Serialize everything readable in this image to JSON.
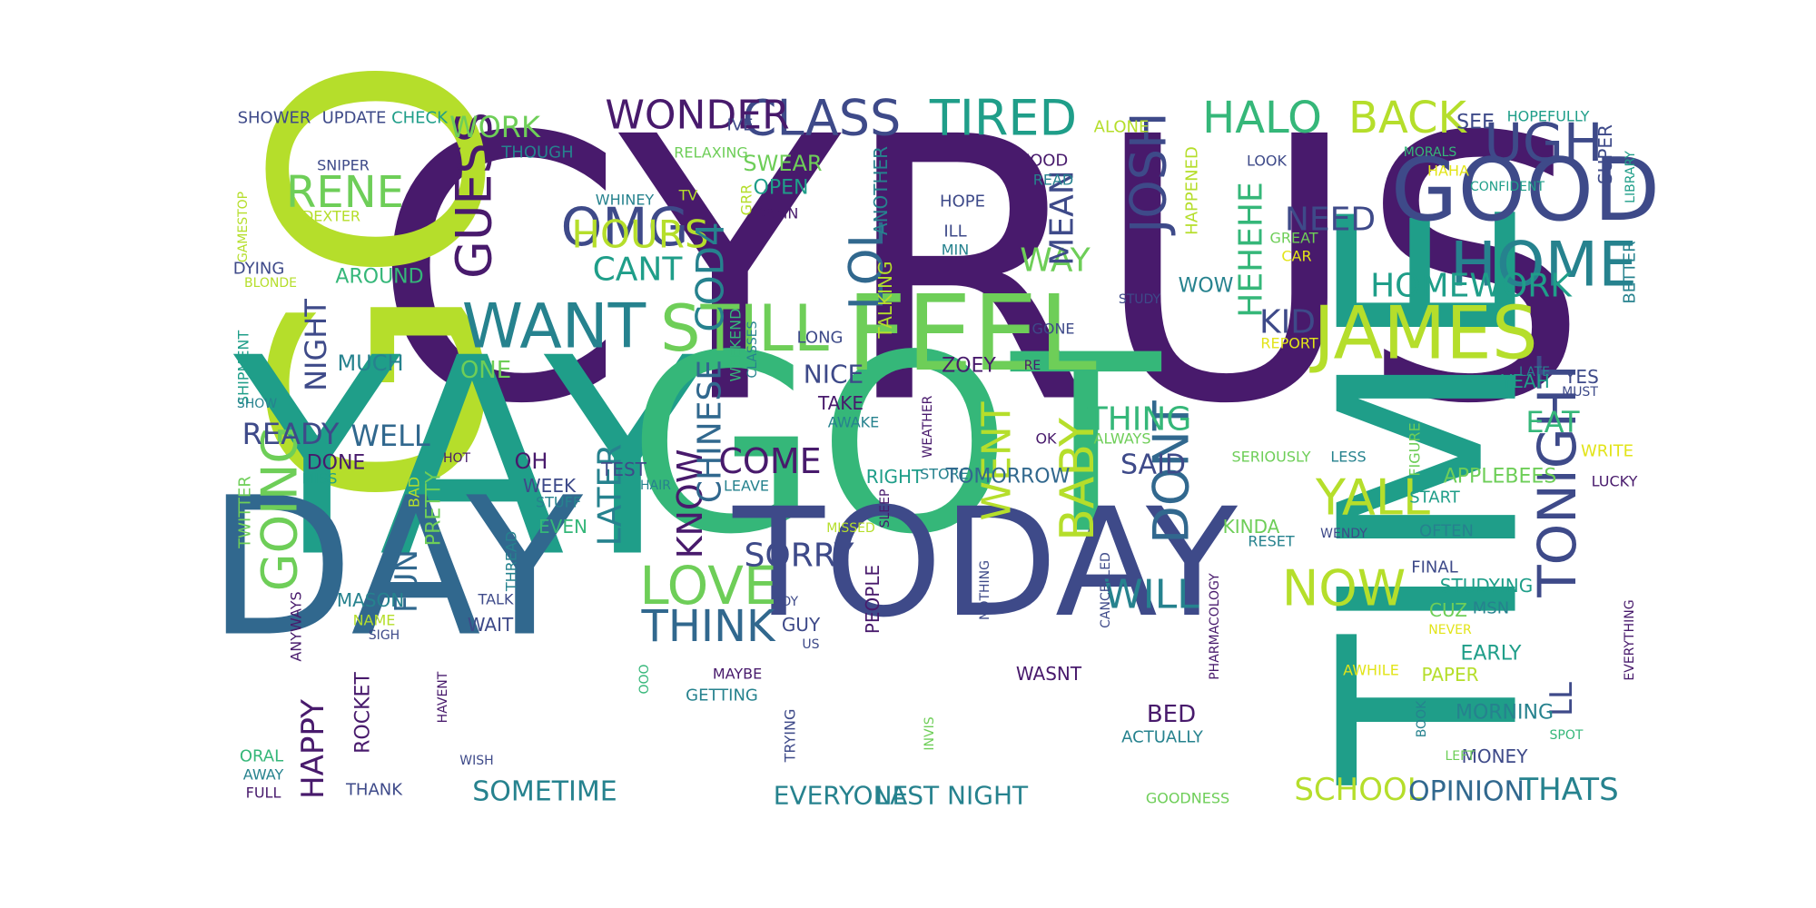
{
  "palette": {
    "purple": "#481a6c",
    "indigo": "#3e4a89",
    "blue": "#31688e",
    "teal": "#26828e",
    "green": "#1f9e89",
    "emerald": "#35b779",
    "lime": "#6ece58",
    "yellowgreen": "#b5de2b",
    "yellow": "#e2e418"
  },
  "words": [
    {
      "t": "CYRUS",
      "c": "purple"
    },
    {
      "t": "GO",
      "c": "yellowgreen"
    },
    {
      "t": "YAY",
      "c": "green"
    },
    {
      "t": "GOT",
      "c": "emerald"
    },
    {
      "t": "TIME",
      "c": "green"
    },
    {
      "t": "DAY",
      "c": "blue"
    },
    {
      "t": "TODAY",
      "c": "indigo"
    },
    {
      "t": "FEEL",
      "c": "lime"
    },
    {
      "t": "GOOD",
      "c": "indigo"
    },
    {
      "t": "JAMES",
      "c": "yellowgreen"
    },
    {
      "t": "STILL",
      "c": "lime"
    },
    {
      "t": "WANT",
      "c": "teal"
    },
    {
      "t": "OMG",
      "c": "indigo"
    },
    {
      "t": "CLASS",
      "c": "indigo"
    },
    {
      "t": "TIRED",
      "c": "green"
    },
    {
      "t": "HALO",
      "c": "emerald"
    },
    {
      "t": "BACK",
      "c": "yellowgreen"
    },
    {
      "t": "WONDER",
      "c": "purple"
    },
    {
      "t": "HOME",
      "c": "teal"
    },
    {
      "t": "UGH",
      "c": "indigo"
    },
    {
      "t": "TONIGHT",
      "c": "indigo"
    },
    {
      "t": "LOVE",
      "c": "lime"
    },
    {
      "t": "THINK",
      "c": "blue"
    },
    {
      "t": "NOW",
      "c": "yellowgreen"
    },
    {
      "t": "YALL",
      "c": "yellowgreen"
    },
    {
      "t": "GOING",
      "c": "lime"
    },
    {
      "t": "GUESS",
      "c": "purple"
    },
    {
      "t": "JOSH",
      "c": "indigo"
    },
    {
      "t": "DONT",
      "c": "blue"
    },
    {
      "t": "BABY",
      "c": "yellowgreen"
    },
    {
      "t": "WILL",
      "c": "teal"
    },
    {
      "t": "RENE",
      "c": "lime"
    },
    {
      "t": "HOURS",
      "c": "yellowgreen"
    },
    {
      "t": "HOMEWORK",
      "c": "green"
    },
    {
      "t": "LOL",
      "c": "blue"
    },
    {
      "t": "CANT",
      "c": "green"
    },
    {
      "t": "COD4",
      "c": "teal"
    },
    {
      "t": "COME",
      "c": "purple"
    },
    {
      "t": "SORRY",
      "c": "indigo"
    },
    {
      "t": "LATER",
      "c": "teal"
    },
    {
      "t": "KNOW",
      "c": "purple"
    },
    {
      "t": "CHINESE",
      "c": "blue"
    },
    {
      "t": "WENT",
      "c": "yellowgreen"
    },
    {
      "t": "THING",
      "c": "emerald"
    },
    {
      "t": "SAID",
      "c": "indigo"
    },
    {
      "t": "WAY",
      "c": "lime"
    },
    {
      "t": "MEAN",
      "c": "indigo"
    },
    {
      "t": "NEED",
      "c": "indigo"
    },
    {
      "t": "KID",
      "c": "indigo"
    },
    {
      "t": "HEHEHE",
      "c": "emerald"
    },
    {
      "t": "READY",
      "c": "indigo"
    },
    {
      "t": "WELL",
      "c": "blue"
    },
    {
      "t": "NIGHT",
      "c": "indigo"
    },
    {
      "t": "WORK",
      "c": "lime"
    },
    {
      "t": "EAT",
      "c": "emerald"
    },
    {
      "t": "YEAH",
      "c": "green"
    },
    {
      "t": "YES",
      "c": "indigo"
    },
    {
      "t": "LL",
      "c": "indigo"
    },
    {
      "t": "SCHOOL",
      "c": "yellowgreen"
    },
    {
      "t": "THATS",
      "c": "teal"
    },
    {
      "t": "OPINION",
      "c": "blue"
    },
    {
      "t": "SOMETIME",
      "c": "teal"
    },
    {
      "t": "LAST NIGHT",
      "c": "teal"
    },
    {
      "t": "EVERYONE",
      "c": "teal"
    },
    {
      "t": "HAPPY",
      "c": "purple"
    },
    {
      "t": "FUN",
      "c": "blue"
    },
    {
      "t": "NICE",
      "c": "indigo"
    },
    {
      "t": "ONE",
      "c": "lime"
    },
    {
      "t": "MUCH",
      "c": "teal"
    },
    {
      "t": "AROUND",
      "c": "emerald"
    },
    {
      "t": "SHOWER",
      "c": "indigo"
    },
    {
      "t": "UPDATE",
      "c": "indigo"
    },
    {
      "t": "CHECK",
      "c": "green"
    },
    {
      "t": "THOUGH",
      "c": "teal"
    },
    {
      "t": "IVE",
      "c": "indigo"
    },
    {
      "t": "RELAXING",
      "c": "lime"
    },
    {
      "t": "SWEAR",
      "c": "lime"
    },
    {
      "t": "OPEN",
      "c": "green"
    },
    {
      "t": "WHINEY",
      "c": "teal"
    },
    {
      "t": "TV",
      "c": "yellowgreen"
    },
    {
      "t": "DAMN",
      "c": "purple"
    },
    {
      "t": "GRR",
      "c": "yellowgreen"
    },
    {
      "t": "ANOTHER",
      "c": "teal"
    },
    {
      "t": "HOPE",
      "c": "indigo"
    },
    {
      "t": "ILL",
      "c": "indigo"
    },
    {
      "t": "MIN",
      "c": "teal"
    },
    {
      "t": "TALKING",
      "c": "yellowgreen"
    },
    {
      "t": "FOOD",
      "c": "purple"
    },
    {
      "t": "READ",
      "c": "teal"
    },
    {
      "t": "ALONE",
      "c": "yellowgreen"
    },
    {
      "t": "HAPPENED",
      "c": "yellowgreen"
    },
    {
      "t": "STUDY",
      "c": "indigo"
    },
    {
      "t": "GONE",
      "c": "indigo"
    },
    {
      "t": "WOW",
      "c": "teal"
    },
    {
      "t": "GREAT",
      "c": "lime"
    },
    {
      "t": "CAR",
      "c": "yellow"
    },
    {
      "t": "REPORT",
      "c": "yellow"
    },
    {
      "t": "LOOK",
      "c": "indigo"
    },
    {
      "t": "SEE",
      "c": "indigo"
    },
    {
      "t": "HOPEFULLY",
      "c": "green"
    },
    {
      "t": "MORALS",
      "c": "emerald"
    },
    {
      "t": "HAHA",
      "c": "yellow"
    },
    {
      "t": "CONFIDENT",
      "c": "green"
    },
    {
      "t": "SUPER",
      "c": "indigo"
    },
    {
      "t": "LIBRARY",
      "c": "green"
    },
    {
      "t": "BETTER",
      "c": "teal"
    },
    {
      "t": "MUST",
      "c": "indigo"
    },
    {
      "t": "LATE",
      "c": "teal"
    },
    {
      "t": "SNIPER",
      "c": "indigo"
    },
    {
      "t": "DEXTER",
      "c": "yellowgreen"
    },
    {
      "t": "GAMESTOP",
      "c": "yellowgreen"
    },
    {
      "t": "DYING",
      "c": "indigo"
    },
    {
      "t": "BLONDE",
      "c": "yellowgreen"
    },
    {
      "t": "SHIPMENT",
      "c": "green"
    },
    {
      "t": "SHOW",
      "c": "teal"
    },
    {
      "t": "TWITTER",
      "c": "lime"
    },
    {
      "t": "DONE",
      "c": "purple"
    },
    {
      "t": "MISS",
      "c": "green"
    },
    {
      "t": "HOT",
      "c": "purple"
    },
    {
      "t": "BAD",
      "c": "yellowgreen"
    },
    {
      "t": "PRETTY",
      "c": "lime"
    },
    {
      "t": "OH",
      "c": "purple"
    },
    {
      "t": "TEST",
      "c": "indigo"
    },
    {
      "t": "WEEK",
      "c": "indigo"
    },
    {
      "t": "HAIR",
      "c": "teal"
    },
    {
      "t": "LEAVE",
      "c": "teal"
    },
    {
      "t": "STUFF",
      "c": "teal"
    },
    {
      "t": "EVEN",
      "c": "emerald"
    },
    {
      "t": "RIGHT",
      "c": "green"
    },
    {
      "t": "STORE",
      "c": "teal"
    },
    {
      "t": "TOMORROW",
      "c": "blue"
    },
    {
      "t": "WEATHER",
      "c": "purple"
    },
    {
      "t": "SLEEP",
      "c": "purple"
    },
    {
      "t": "OK",
      "c": "purple"
    },
    {
      "t": "ALWAYS",
      "c": "lime"
    },
    {
      "t": "SERIOUSLY",
      "c": "lime"
    },
    {
      "t": "LESS",
      "c": "teal"
    },
    {
      "t": "APPLEBEES",
      "c": "lime"
    },
    {
      "t": "FIGURE",
      "c": "lime"
    },
    {
      "t": "WRITE",
      "c": "yellow"
    },
    {
      "t": "LUCKY",
      "c": "purple"
    },
    {
      "t": "START",
      "c": "green"
    },
    {
      "t": "OFTEN",
      "c": "teal"
    },
    {
      "t": "RESET",
      "c": "teal"
    },
    {
      "t": "WENDY",
      "c": "indigo"
    },
    {
      "t": "KINDA",
      "c": "lime"
    },
    {
      "t": "FINAL",
      "c": "indigo"
    },
    {
      "t": "STUDYING",
      "c": "green"
    },
    {
      "t": "MSN",
      "c": "teal"
    },
    {
      "t": "CUZ",
      "c": "lime"
    },
    {
      "t": "NEVER",
      "c": "yellow"
    },
    {
      "t": "EARLY",
      "c": "green"
    },
    {
      "t": "AWHILE",
      "c": "yellow"
    },
    {
      "t": "PAPER",
      "c": "yellowgreen"
    },
    {
      "t": "MORNING",
      "c": "teal"
    },
    {
      "t": "MONEY",
      "c": "indigo"
    },
    {
      "t": "SPOT",
      "c": "emerald"
    },
    {
      "t": "EVERYTHING",
      "c": "purple"
    },
    {
      "t": "BOOK",
      "c": "teal"
    },
    {
      "t": "LEFT",
      "c": "lime"
    },
    {
      "t": "PHARMACOLOGY",
      "c": "purple"
    },
    {
      "t": "CANCELLED",
      "c": "indigo"
    },
    {
      "t": "NOTHING",
      "c": "indigo"
    },
    {
      "t": "MISSED",
      "c": "yellowgreen"
    },
    {
      "t": "PEOPLE",
      "c": "purple"
    },
    {
      "t": "BOY",
      "c": "indigo"
    },
    {
      "t": "GUY",
      "c": "indigo"
    },
    {
      "t": "US",
      "c": "indigo"
    },
    {
      "t": "ZOEY",
      "c": "purple"
    },
    {
      "t": "RE",
      "c": "purple"
    },
    {
      "t": "LONG",
      "c": "indigo"
    },
    {
      "t": "TAKE",
      "c": "purple"
    },
    {
      "t": "AWAKE",
      "c": "teal"
    },
    {
      "t": "CLASSES",
      "c": "teal"
    },
    {
      "t": "WEEKEND",
      "c": "emerald"
    },
    {
      "t": "MASON",
      "c": "teal"
    },
    {
      "t": "NAME",
      "c": "yellowgreen"
    },
    {
      "t": "SIGH",
      "c": "indigo"
    },
    {
      "t": "TALK",
      "c": "indigo"
    },
    {
      "t": "THREAD",
      "c": "teal"
    },
    {
      "t": "WAIT",
      "c": "indigo"
    },
    {
      "t": "ANYWAYS",
      "c": "purple"
    },
    {
      "t": "ROCKET",
      "c": "purple"
    },
    {
      "t": "HAVENT",
      "c": "purple"
    },
    {
      "t": "OOO",
      "c": "emerald"
    },
    {
      "t": "MAYBE",
      "c": "purple"
    },
    {
      "t": "GETTING",
      "c": "teal"
    },
    {
      "t": "TRYING",
      "c": "indigo"
    },
    {
      "t": "INVIS",
      "c": "lime"
    },
    {
      "t": "BED",
      "c": "purple"
    },
    {
      "t": "WASNT",
      "c": "purple"
    },
    {
      "t": "ACTUALLY",
      "c": "teal"
    },
    {
      "t": "GOODNESS",
      "c": "lime"
    },
    {
      "t": "ORAL",
      "c": "emerald"
    },
    {
      "t": "AWAY",
      "c": "teal"
    },
    {
      "t": "FULL",
      "c": "purple"
    },
    {
      "t": "WISH",
      "c": "indigo"
    },
    {
      "t": "THANK",
      "c": "indigo"
    }
  ]
}
